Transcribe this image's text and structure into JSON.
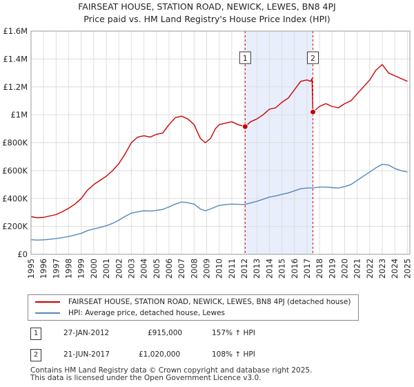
{
  "chart_data": {
    "type": "line",
    "title": "FAIRSEAT HOUSE, STATION ROAD, NEWICK, LEWES, BN8 4PJ",
    "subtitle": "Price paid vs. HM Land Registry's House Price Index (HPI)",
    "xlabel": "",
    "ylabel": "",
    "xlim": [
      1995,
      2025.2
    ],
    "ylim": [
      0,
      1600000
    ],
    "x_ticks": [
      1995,
      1996,
      1997,
      1998,
      1999,
      2000,
      2001,
      2002,
      2003,
      2004,
      2005,
      2006,
      2007,
      2008,
      2009,
      2010,
      2011,
      2012,
      2013,
      2014,
      2015,
      2016,
      2017,
      2018,
      2019,
      2020,
      2021,
      2022,
      2023,
      2024,
      2025
    ],
    "y_ticks": [
      0,
      200000,
      400000,
      600000,
      800000,
      1000000,
      1200000,
      1400000,
      1600000
    ],
    "y_tick_labels": [
      "£0",
      "£200K",
      "£400K",
      "£600K",
      "£800K",
      "£1M",
      "£1.2M",
      "£1.4M",
      "£1.6M"
    ],
    "grid": true,
    "shaded_span": [
      2012.07,
      2017.47
    ],
    "series": [
      {
        "name": "FAIRSEAT HOUSE, STATION ROAD, NEWICK, LEWES, BN8 4PJ (detached house)",
        "color": "#cc0000",
        "x": [
          1995,
          1995.5,
          1996,
          1996.5,
          1997,
          1997.5,
          1998,
          1998.5,
          1999,
          1999.5,
          2000,
          2000.5,
          2001,
          2001.5,
          2002,
          2002.5,
          2003,
          2003.5,
          2004,
          2004.5,
          2005,
          2005.5,
          2006,
          2006.5,
          2007,
          2007.5,
          2008,
          2008.5,
          2008.9,
          2009.3,
          2009.7,
          2010,
          2010.5,
          2011,
          2011.5,
          2012.07,
          2012.5,
          2013,
          2013.5,
          2014,
          2014.5,
          2015,
          2015.5,
          2016,
          2016.5,
          2017,
          2017.3,
          2017.4,
          2017.47,
          2018,
          2018.5,
          2019,
          2019.5,
          2020,
          2020.5,
          2021,
          2021.5,
          2022,
          2022.5,
          2023,
          2023.5,
          2024,
          2024.5,
          2025
        ],
        "values": [
          270000,
          262000,
          265000,
          275000,
          285000,
          305000,
          330000,
          360000,
          400000,
          460000,
          500000,
          530000,
          560000,
          600000,
          650000,
          720000,
          800000,
          840000,
          850000,
          840000,
          860000,
          870000,
          930000,
          980000,
          990000,
          970000,
          930000,
          830000,
          800000,
          830000,
          900000,
          930000,
          940000,
          950000,
          930000,
          915000,
          950000,
          970000,
          1000000,
          1040000,
          1050000,
          1090000,
          1120000,
          1180000,
          1240000,
          1250000,
          1240000,
          1260000,
          1020000,
          1060000,
          1080000,
          1060000,
          1050000,
          1080000,
          1100000,
          1150000,
          1200000,
          1250000,
          1320000,
          1360000,
          1300000,
          1280000,
          1260000,
          1240000
        ]
      },
      {
        "name": "HPI: Average price, detached house, Lewes",
        "color": "#5588bb",
        "x": [
          1995,
          1995.5,
          1996,
          1996.5,
          1997,
          1997.5,
          1998,
          1998.5,
          1999,
          1999.5,
          2000,
          2000.5,
          2001,
          2001.5,
          2002,
          2002.5,
          2003,
          2003.5,
          2004,
          2004.5,
          2005,
          2005.5,
          2006,
          2006.5,
          2007,
          2007.5,
          2008,
          2008.5,
          2008.9,
          2009.3,
          2009.7,
          2010,
          2010.5,
          2011,
          2011.5,
          2012,
          2012.5,
          2013,
          2013.5,
          2014,
          2014.5,
          2015,
          2015.5,
          2016,
          2016.5,
          2017,
          2017.5,
          2018,
          2018.5,
          2019,
          2019.5,
          2020,
          2020.5,
          2021,
          2021.5,
          2022,
          2022.5,
          2023,
          2023.5,
          2024,
          2024.5,
          2025
        ],
        "values": [
          105000,
          102000,
          104000,
          108000,
          113000,
          120000,
          128000,
          138000,
          150000,
          170000,
          182000,
          192000,
          205000,
          222000,
          245000,
          272000,
          295000,
          305000,
          312000,
          310000,
          315000,
          322000,
          340000,
          360000,
          375000,
          370000,
          360000,
          325000,
          312000,
          325000,
          340000,
          350000,
          356000,
          360000,
          358000,
          356000,
          368000,
          380000,
          395000,
          410000,
          418000,
          430000,
          440000,
          455000,
          470000,
          475000,
          476000,
          482000,
          482000,
          478000,
          475000,
          485000,
          500000,
          530000,
          560000,
          590000,
          620000,
          645000,
          640000,
          615000,
          600000,
          590000
        ]
      }
    ],
    "sales": [
      {
        "label": "1",
        "date": "27-JAN-2012",
        "price": "£915,000",
        "hpi": "157% ↑ HPI",
        "x": 2012.07,
        "y": 915000
      },
      {
        "label": "2",
        "date": "21-JUN-2017",
        "price": "£1,020,000",
        "hpi": "108% ↑ HPI",
        "x": 2017.47,
        "y": 1020000
      }
    ]
  },
  "legend": {
    "items": [
      {
        "label": "FAIRSEAT HOUSE, STATION ROAD, NEWICK, LEWES, BN8 4PJ (detached house)",
        "color": "#cc0000"
      },
      {
        "label": "HPI: Average price, detached house, Lewes",
        "color": "#5588bb"
      }
    ]
  },
  "footer": {
    "line1": "Contains HM Land Registry data © Crown copyright and database right 2025.",
    "line2": "This data is licensed under the Open Government Licence v3.0."
  }
}
